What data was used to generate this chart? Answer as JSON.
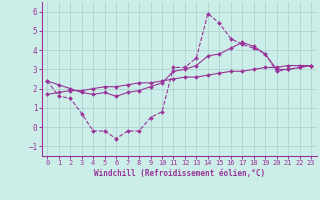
{
  "xlabel": "Windchill (Refroidissement éolien,°C)",
  "background_color": "#cceee8",
  "grid_color": "#aacccc",
  "line_color": "#993399",
  "x_values": [
    0,
    1,
    2,
    3,
    4,
    5,
    6,
    7,
    8,
    9,
    10,
    11,
    12,
    13,
    14,
    15,
    16,
    17,
    18,
    19,
    20,
    21,
    22,
    23
  ],
  "line1_y": [
    2.4,
    1.6,
    1.5,
    0.7,
    -0.2,
    -0.2,
    -0.6,
    -0.2,
    -0.2,
    0.5,
    0.8,
    3.1,
    3.1,
    3.6,
    5.9,
    5.4,
    4.6,
    4.3,
    4.1,
    3.8,
    2.9,
    3.0,
    3.1,
    3.2
  ],
  "line2_y": [
    1.7,
    1.8,
    1.9,
    1.9,
    2.0,
    2.1,
    2.1,
    2.2,
    2.3,
    2.3,
    2.4,
    2.5,
    2.6,
    2.6,
    2.7,
    2.8,
    2.9,
    2.9,
    3.0,
    3.1,
    3.1,
    3.2,
    3.2,
    3.2
  ],
  "line3_y": [
    2.4,
    2.2,
    2.0,
    1.8,
    1.7,
    1.8,
    1.6,
    1.8,
    1.9,
    2.1,
    2.3,
    2.9,
    3.0,
    3.2,
    3.7,
    3.8,
    4.1,
    4.4,
    4.2,
    3.8,
    3.0,
    3.0,
    3.1,
    3.2
  ],
  "ylim": [
    -1.5,
    6.5
  ],
  "yticks": [
    -1,
    0,
    1,
    2,
    3,
    4,
    5,
    6
  ],
  "xlim": [
    -0.5,
    23.5
  ],
  "xticks": [
    0,
    1,
    2,
    3,
    4,
    5,
    6,
    7,
    8,
    9,
    10,
    11,
    12,
    13,
    14,
    15,
    16,
    17,
    18,
    19,
    20,
    21,
    22,
    23
  ],
  "xlabel_fontsize": 5.5,
  "tick_fontsize": 5.5
}
